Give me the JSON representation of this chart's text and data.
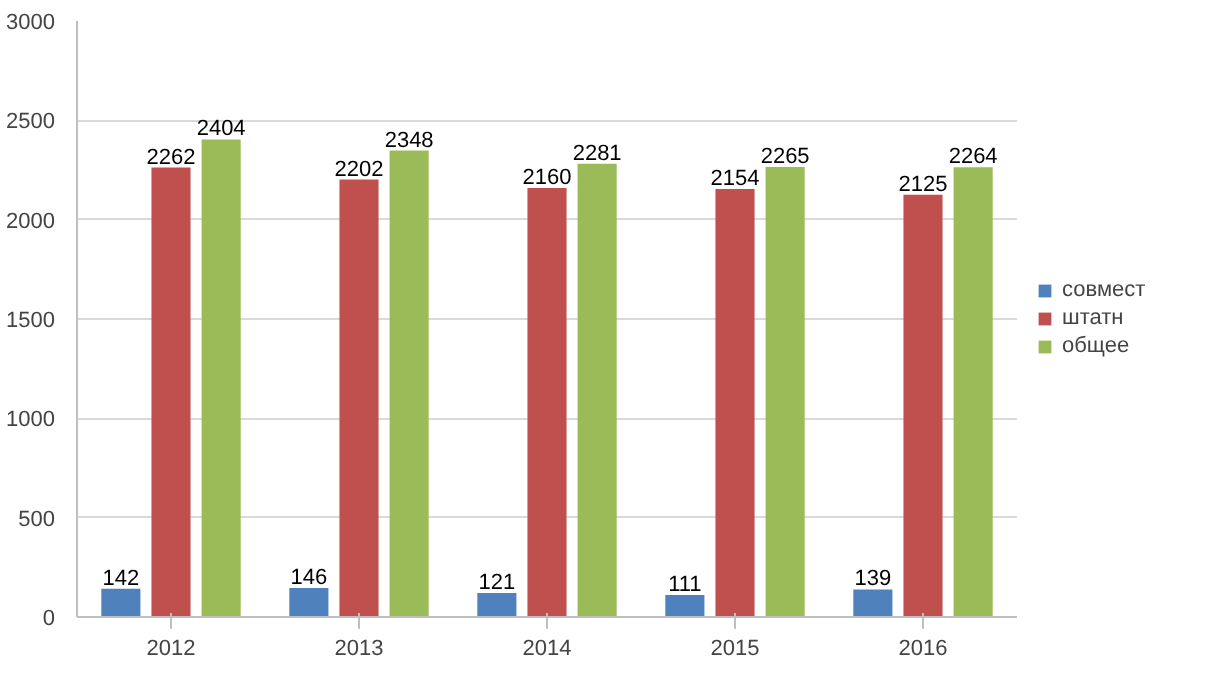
{
  "chart_data": {
    "type": "bar",
    "categories": [
      "2012",
      "2013",
      "2014",
      "2015",
      "2016"
    ],
    "series": [
      {
        "name": "совмест",
        "color": "#4f81bd",
        "values": [
          142,
          146,
          121,
          111,
          139
        ]
      },
      {
        "name": "штатн",
        "color": "#c0504d",
        "values": [
          2262,
          2202,
          2160,
          2154,
          2125
        ]
      },
      {
        "name": "общее",
        "color": "#9bbb59",
        "values": [
          2404,
          2348,
          2281,
          2265,
          2264
        ]
      }
    ],
    "ylim": [
      0,
      3000
    ],
    "yticks": [
      0,
      500,
      1000,
      1500,
      2000,
      2500,
      3000
    ],
    "grid": "y",
    "legend": "right",
    "data_labels": true
  }
}
